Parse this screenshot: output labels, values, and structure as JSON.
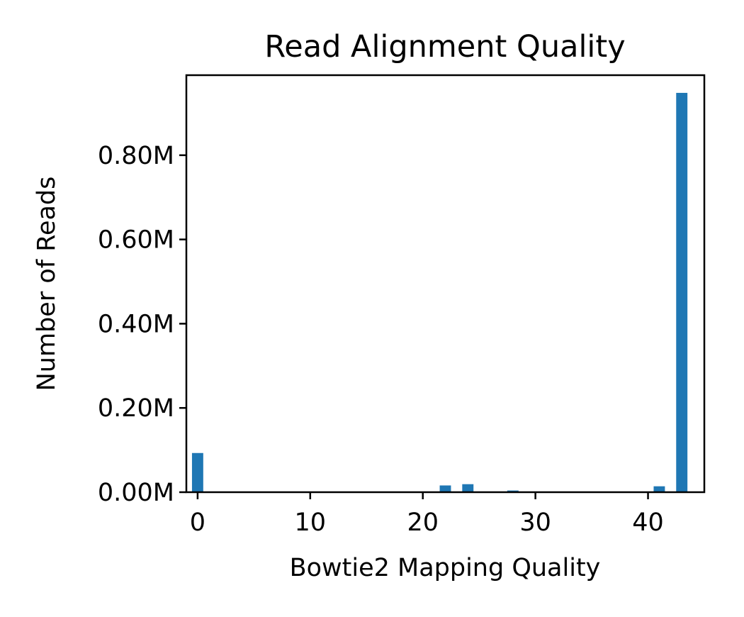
{
  "chart_data": {
    "type": "bar",
    "title": "Read Alignment Quality",
    "xlabel": "Bowtie2 Mapping Quality",
    "ylabel": "Number of Reads",
    "xlim": [
      -1,
      45
    ],
    "ylim": [
      0,
      990000
    ],
    "xticks": [
      0,
      10,
      20,
      30,
      40
    ],
    "xtick_labels": [
      "0",
      "10",
      "20",
      "30",
      "40"
    ],
    "yticks": [
      0,
      200000,
      400000,
      600000,
      800000
    ],
    "ytick_labels": [
      "0.00M",
      "0.20M",
      "0.40M",
      "0.60M",
      "0.80M"
    ],
    "bar_width": 1.0,
    "color": "#1f77b4",
    "grid": false,
    "x": [
      0,
      22,
      24,
      28,
      41,
      43
    ],
    "values": [
      93000,
      16000,
      19000,
      4000,
      14000,
      948000
    ]
  }
}
